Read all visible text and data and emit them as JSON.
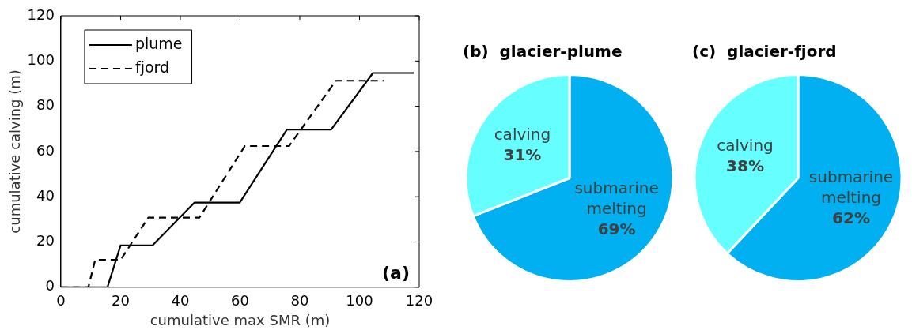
{
  "chart_data": [
    {
      "type": "line",
      "xlabel": "cumulative max SMR (m)",
      "ylabel": "cumulative calving (m)",
      "xlim": [
        0,
        120
      ],
      "xticks": [
        0,
        20,
        40,
        60,
        80,
        100,
        120
      ],
      "ylim": [
        0,
        120
      ],
      "yticks": [
        0,
        20,
        40,
        60,
        80,
        100,
        120
      ],
      "legend": "top left",
      "marker": "none",
      "annotations": [
        "(a)"
      ],
      "series": [
        {
          "name": "plume",
          "color": "#000000",
          "line_style": "solid",
          "x": [
            0,
            15.6,
            20,
            30.7,
            44.7,
            59.9,
            75.7,
            90.5,
            104.5,
            118.2
          ],
          "values": [
            0,
            0,
            18.5,
            18.5,
            37.4,
            37.4,
            69.7,
            69.7,
            94.7,
            94.7
          ]
        },
        {
          "name": "fjord",
          "color": "#000000",
          "line_style": "dashed",
          "x": [
            0,
            9.2,
            11.5,
            20,
            29.3,
            46.4,
            61.6,
            76.4,
            92.1,
            108.2
          ],
          "values": [
            0,
            0,
            12.1,
            12.1,
            30.8,
            30.8,
            62.4,
            62.4,
            91.3,
            91.3
          ]
        }
      ]
    },
    {
      "type": "pie",
      "title": "(b)  glacier-plume",
      "categories": [
        "submarine melting",
        "calving"
      ],
      "values": [
        69,
        31
      ],
      "colors": [
        "#00b0f0",
        "#66ffff"
      ],
      "value_labels": [
        "69%",
        "31%"
      ]
    },
    {
      "type": "pie",
      "title": "(c)  glacier-fjord",
      "categories": [
        "submarine melting",
        "calving"
      ],
      "values": [
        62,
        38
      ],
      "colors": [
        "#00b0f0",
        "#66ffff"
      ],
      "value_labels": [
        "62%",
        "38%"
      ]
    }
  ]
}
